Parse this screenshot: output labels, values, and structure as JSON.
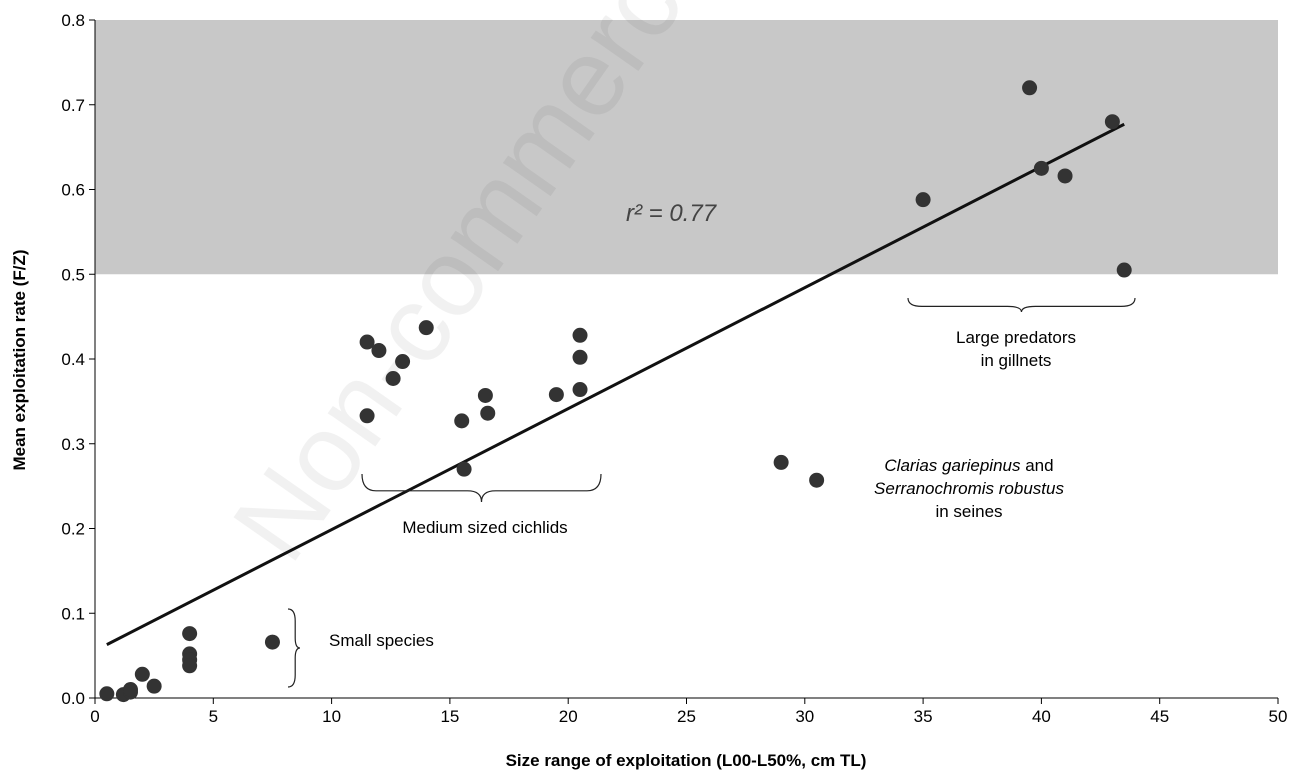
{
  "chart_data": {
    "type": "scatter",
    "xlabel": "Size range of exploitation (L00-L50%, cm TL)",
    "ylabel": "Mean exploitation rate (F/Z)",
    "xlim": [
      0,
      50
    ],
    "ylim": [
      0,
      0.8
    ],
    "x_ticks": [
      "0",
      "5",
      "10",
      "15",
      "20",
      "25",
      "30",
      "35",
      "40",
      "45",
      "50"
    ],
    "y_ticks": [
      "0.0",
      "0.1",
      "0.2",
      "0.3",
      "0.4",
      "0.5",
      "0.6",
      "0.7",
      "0.8"
    ],
    "shaded_region": {
      "y_from": 0.5,
      "y_to": 0.8,
      "color": "#c8c8c8"
    },
    "trendline": {
      "x": [
        0.5,
        43.5
      ],
      "y": [
        0.063,
        0.677
      ],
      "r_squared_label": "r² = 0.77"
    },
    "points": {
      "x": [
        0.5,
        1.2,
        1.5,
        1.5,
        2.0,
        2.5,
        4.0,
        4.0,
        4.0,
        4.0,
        7.5,
        11.5,
        11.5,
        12.0,
        12.6,
        13.0,
        14.0,
        15.5,
        15.6,
        16.5,
        16.6,
        19.5,
        20.5,
        20.5,
        20.5,
        29.0,
        30.5,
        35.0,
        39.5,
        40.0,
        41.0,
        43.0,
        43.5
      ],
      "y": [
        0.005,
        0.004,
        0.007,
        0.01,
        0.028,
        0.014,
        0.076,
        0.052,
        0.045,
        0.038,
        0.066,
        0.42,
        0.333,
        0.41,
        0.377,
        0.397,
        0.437,
        0.327,
        0.27,
        0.357,
        0.336,
        0.358,
        0.428,
        0.402,
        0.364,
        0.278,
        0.257,
        0.588,
        0.72,
        0.625,
        0.616,
        0.68,
        0.505
      ]
    },
    "annotations": [
      {
        "text": "Small species"
      },
      {
        "text": "Medium sized cichlids"
      },
      {
        "lines": [
          "Large predators",
          "in gillnets"
        ]
      },
      {
        "line1_italic": "Clarias gariepinus",
        "line1_rest": " and",
        "line2": "Serranochromis robustus",
        "line3": "in seines"
      }
    ],
    "watermark": "Non-commercial",
    "colors": {
      "point": "#333333",
      "line": "#111111",
      "axis": "#000000"
    }
  }
}
